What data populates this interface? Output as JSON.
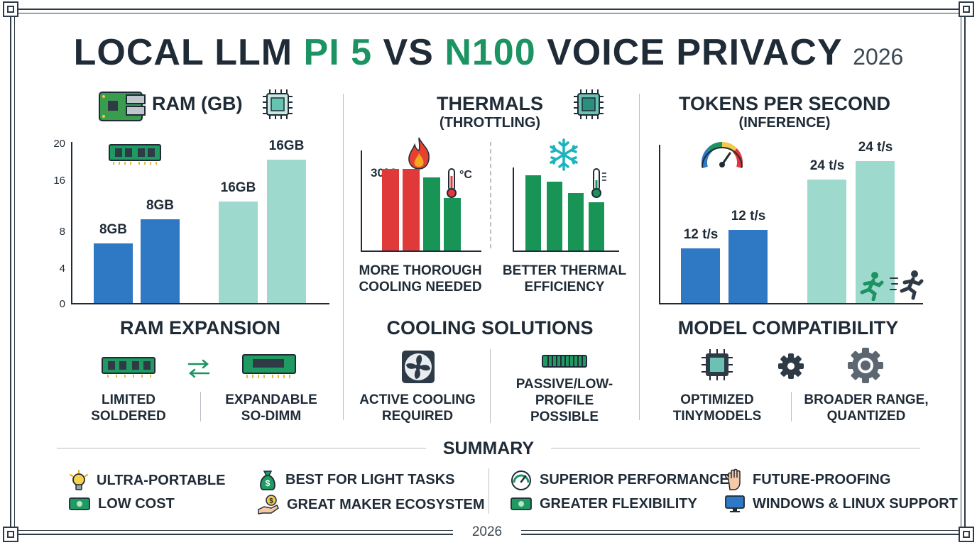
{
  "title": {
    "part1": "LOCAL LLM ",
    "pi": "PI 5",
    "vs": " VS ",
    "n100": "N100",
    "part2": " VOICE PRIVACY ",
    "year": "2026"
  },
  "ram": {
    "title": "RAM (GB)",
    "ticks": [
      "20",
      "16",
      "8",
      "4",
      "0"
    ],
    "bar_labels": [
      "8GB",
      "8GB",
      "16GB",
      "16GB"
    ],
    "expansion_title": "RAM EXPANSION",
    "left_label": [
      "LIMITED",
      "SOLDERED"
    ],
    "right_label": [
      "EXPANDABLE",
      "SO-DIMM"
    ]
  },
  "thermals": {
    "title": "THERMALS",
    "subtitle": "(THROTTLING)",
    "temp_label": "30°C",
    "unit_label": "°C",
    "left_caption": [
      "MORE THOROUGH",
      "COOLING NEEDED"
    ],
    "right_caption": [
      "BETTER THERMAL",
      "EFFICIENCY"
    ],
    "cooling_title": "COOLING SOLUTIONS",
    "active_label": [
      "ACTIVE COOLING",
      "REQUIRED"
    ],
    "passive_label": [
      "PASSIVE/LOW-",
      "PROFILE",
      "POSSIBLE"
    ]
  },
  "tokens": {
    "title": "TOKENS PER SECOND",
    "subtitle": "(INFERENCE)",
    "bar_labels": [
      "12 t/s",
      "12 t/s",
      "24 t/s",
      "24 t/s"
    ],
    "compat_title": "MODEL COMPATIBILITY",
    "left_label": [
      "OPTIMIZED",
      "TINYMODELS"
    ],
    "right_label": [
      "BROADER RANGE,",
      "QUANTIZED"
    ]
  },
  "summary": {
    "title": "SUMMARY",
    "items": [
      "ULTRA-PORTABLE",
      "LOW COST",
      "BEST FOR LIGHT TASKS",
      "GREAT MAKER ECOSYSTEM",
      "SUPERIOR PERFORMANCE",
      "GREATER FLEXIBILITY",
      "FUTURE-PROOFING",
      "WINDOWS & LINUX SUPPORT"
    ],
    "icons": [
      "lightbulb-icon",
      "cash-icon",
      "money-bag-icon",
      "hand-coin-icon",
      "speedometer-icon",
      "cash-icon",
      "hand-icon",
      "monitor-icon"
    ]
  },
  "footer_year": "2026",
  "chart_data": [
    {
      "type": "bar",
      "title": "RAM (GB)",
      "categories": [
        "8GB",
        "8GB",
        "16GB",
        "16GB"
      ],
      "values": [
        8,
        8,
        16,
        16
      ],
      "ylim": [
        0,
        20
      ]
    },
    {
      "type": "bar",
      "title": "THERMALS",
      "subtitle": "(THROTTLING)",
      "series": [
        {
          "values": [
            85,
            85,
            76,
            55
          ]
        },
        {
          "values": [
            78,
            72,
            60,
            50
          ]
        }
      ]
    },
    {
      "type": "bar",
      "title": "TOKENS PER SECOND",
      "subtitle": "(INFERENCE)",
      "categories": [
        "12 t/s",
        "12 t/s",
        "24 t/s",
        "24 t/s"
      ],
      "values": [
        12,
        12,
        24,
        24
      ]
    }
  ],
  "colors": {
    "pi_blue": "#2f78c4",
    "n100_teal": "#9ed9cd",
    "accent_green": "#1b9362",
    "hot_red": "#e0393a",
    "cool_green": "#199457"
  }
}
